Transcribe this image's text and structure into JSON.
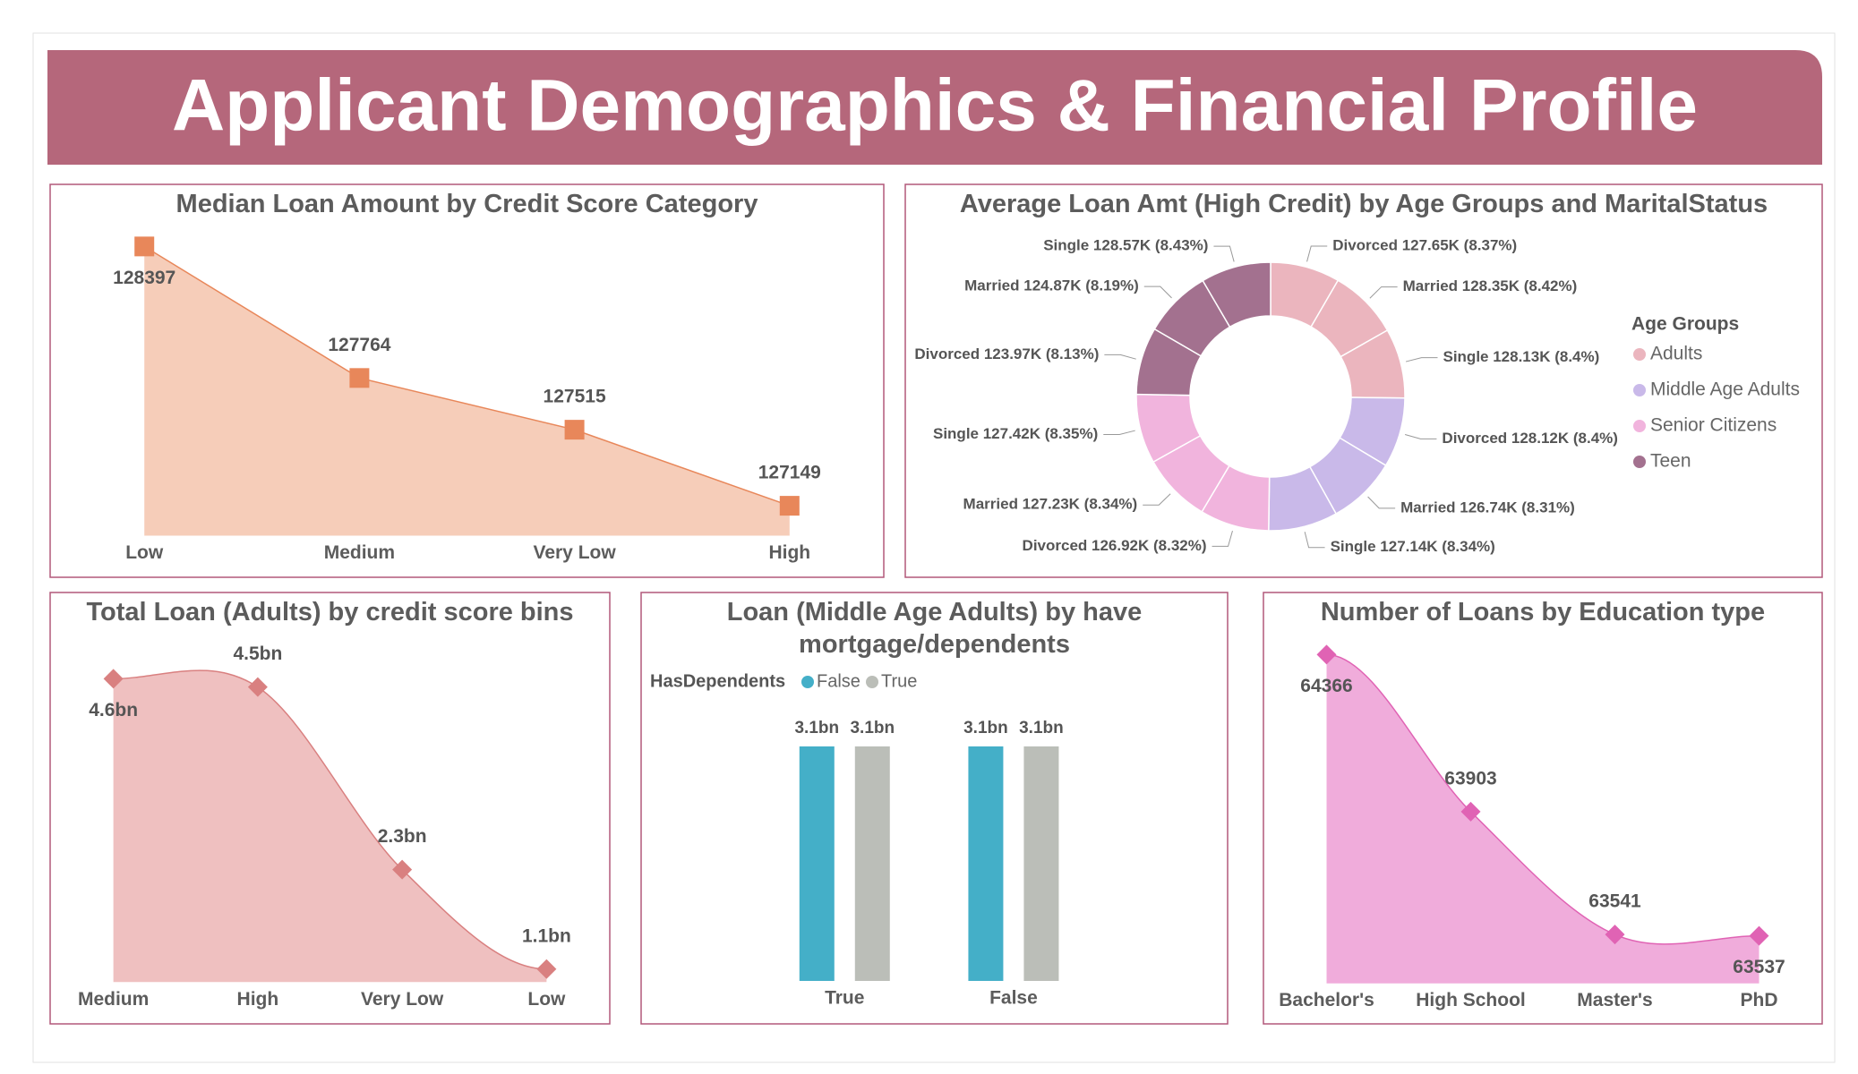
{
  "title": "Applicant Demographics & Financial Profile",
  "chart_data": [
    {
      "type": "area",
      "title": "Median Loan Amount by Credit Score Category",
      "categories": [
        "Low",
        "Medium",
        "Very Low",
        "High"
      ],
      "values": [
        128397,
        127764,
        127515,
        127149
      ],
      "color": "#e8875a",
      "fill": "#f6cdb9",
      "marker": "square"
    },
    {
      "type": "donut",
      "title": "Average Loan Amt (High Credit) by Age Groups and MaritalStatus",
      "legend_title": "Age Groups",
      "series": [
        {
          "name": "Adults",
          "color": "#ebb5be",
          "values": [
            127650,
            128350,
            128130
          ],
          "value_labels": [
            "Divorced 127.65K (8.37%)",
            "Married 128.35K (8.42%)",
            "Single 128.13K (8.4%)"
          ]
        },
        {
          "name": "Middle Age Adults",
          "color": "#c9b9e9",
          "values": [
            128120,
            126740,
            127140
          ],
          "value_labels": [
            "Divorced 128.12K (8.4%)",
            "Married 126.74K (8.31%)",
            "Single 127.14K (8.34%)"
          ]
        },
        {
          "name": "Senior Citizens",
          "color": "#f1b4dd",
          "values": [
            126920,
            127230,
            127420
          ],
          "value_labels": [
            "Divorced 126.92K (8.32%)",
            "Married 127.23K (8.34%)",
            "Single 127.42K (8.35%)"
          ]
        },
        {
          "name": "Teen",
          "color": "#a3718f",
          "values": [
            123970,
            124870,
            128570
          ],
          "value_labels": [
            "Divorced 123.97K (8.13%)",
            "Married 124.87K (8.19%)",
            "Single 128.57K (8.43%)"
          ]
        }
      ]
    },
    {
      "type": "area",
      "title": "Total Loan (Adults) by credit score bins",
      "categories": [
        "Medium",
        "High",
        "Very Low",
        "Low"
      ],
      "values": [
        4600000000,
        4500000000,
        2300000000,
        1100000000
      ],
      "value_labels": [
        "4.6bn",
        "4.5bn",
        "2.3bn",
        "1.1bn"
      ],
      "color": "#d98080",
      "fill": "#efc0c0",
      "marker": "diamond",
      "smooth": true
    },
    {
      "type": "bar",
      "title": "Loan (Middle Age Adults) by have mortgage/dependents",
      "legend_title": "HasDependents",
      "categories": [
        "True",
        "False"
      ],
      "series": [
        {
          "name": "False",
          "color": "#44afc8",
          "values": [
            3100000000,
            3100000000
          ],
          "value_labels": [
            "3.1bn",
            "3.1bn"
          ]
        },
        {
          "name": "True",
          "color": "#bbbeb8",
          "values": [
            3100000000,
            3100000000
          ],
          "value_labels": [
            "3.1bn",
            "3.1bn"
          ]
        }
      ]
    },
    {
      "type": "area",
      "title": "Number of Loans by Education type",
      "categories": [
        "Bachelor's",
        "High School",
        "Master's",
        "PhD"
      ],
      "values": [
        64366,
        63903,
        63541,
        63537
      ],
      "color": "#e063b4",
      "fill": "#f0acdb",
      "marker": "diamond",
      "smooth": true
    }
  ]
}
